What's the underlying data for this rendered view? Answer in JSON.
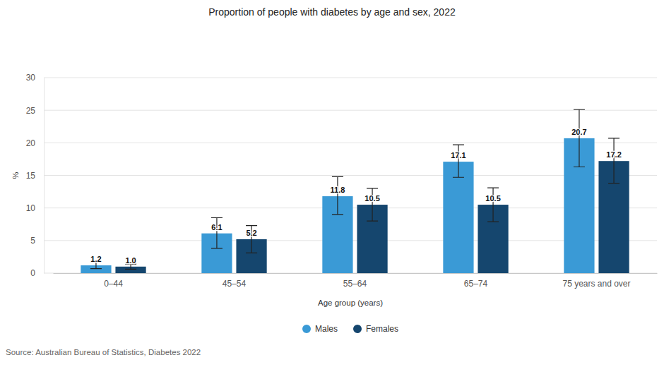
{
  "chart_data": {
    "type": "bar",
    "title": "Proportion of people with diabetes by age and sex, 2022",
    "x_label": "Age group (years)",
    "y_label": "%",
    "source": "Source: Australian Bureau of Statistics, Diabetes 2022",
    "categories": [
      "0–44",
      "45–54",
      "55–64",
      "65–74",
      "75 years and over"
    ],
    "series": [
      {
        "name": "Males",
        "color": "#3a9ad6",
        "values": [
          1.2,
          6.1,
          11.8,
          17.1,
          20.7
        ],
        "error_lower": [
          0.7,
          3.8,
          9.0,
          14.7,
          16.3
        ],
        "error_upper": [
          1.7,
          8.5,
          14.8,
          19.7,
          25.1
        ]
      },
      {
        "name": "Females",
        "color": "#15466e",
        "values": [
          1.0,
          5.2,
          10.5,
          10.5,
          17.2
        ],
        "value_labels": [
          "1.0",
          "5.2",
          "10.5",
          "10.5",
          "17.2"
        ],
        "error_lower": [
          0.6,
          3.1,
          8.0,
          7.9,
          13.8
        ],
        "error_upper": [
          1.4,
          7.3,
          13.0,
          13.1,
          20.7
        ]
      }
    ],
    "ylim": [
      0,
      30
    ],
    "yticks": [
      0,
      5,
      10,
      15,
      20,
      25,
      30
    ],
    "grid": true,
    "legend": "bottom",
    "data_labels": true
  }
}
